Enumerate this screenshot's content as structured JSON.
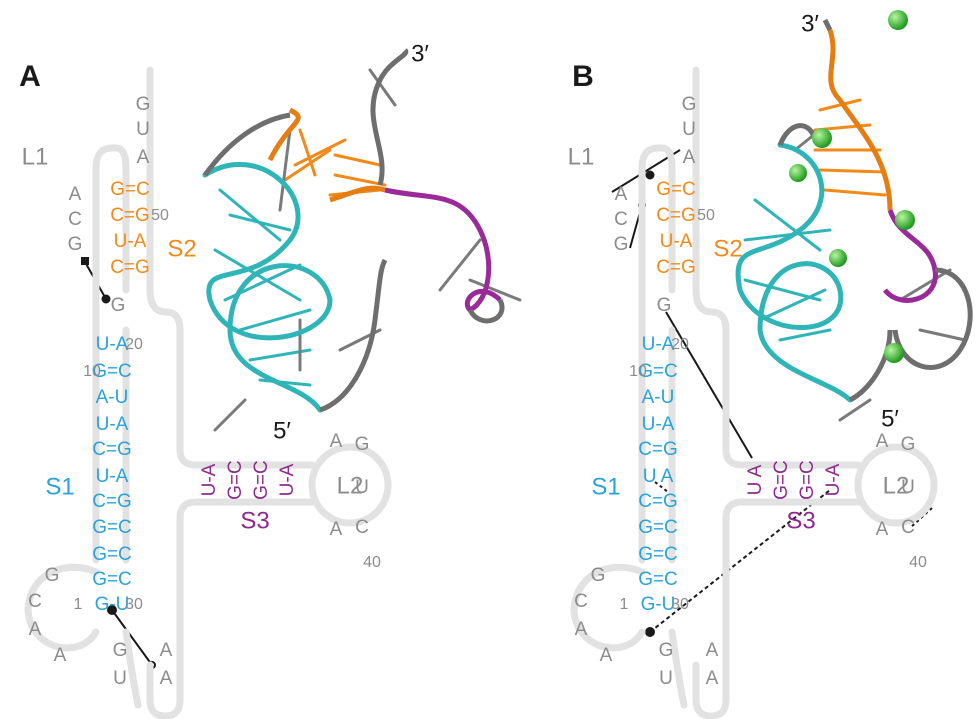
{
  "panels": [
    {
      "label": "A",
      "loop_labels": [
        "L1",
        "L2"
      ],
      "stem_labels": [
        "S1",
        "S2",
        "S3"
      ],
      "ends": [
        "3′",
        "5′"
      ],
      "top_nts": [
        "G",
        "U",
        "A"
      ],
      "l1_nts": [
        "A",
        "C",
        "G",
        "G"
      ],
      "s1_loop_nts": [
        "G",
        "C",
        "A",
        "A"
      ],
      "tail_nts": [
        "G",
        "U",
        "A",
        "A"
      ],
      "l2_nts": [
        "A",
        "G",
        "U",
        "A",
        "C"
      ],
      "s2_pairs": [
        "G=C",
        "C=G",
        "U-A",
        "C=G"
      ],
      "s1_pairs": [
        "U-A",
        "G=C",
        "A-U",
        "U-A",
        "C=G",
        "U-A",
        "C=G",
        "G=C",
        "G=C",
        "G=C",
        "G-U"
      ],
      "s3_pairs": [
        "U-A",
        "G=C",
        "G=C",
        "U-A"
      ],
      "numbers": [
        "50",
        "20",
        "10",
        "1",
        "30",
        "40"
      ]
    },
    {
      "label": "B",
      "loop_labels": [
        "L1",
        "L2"
      ],
      "stem_labels": [
        "S1",
        "S2",
        "S3"
      ],
      "ends": [
        "3′",
        "5′"
      ],
      "top_nts": [
        "G",
        "U",
        "A"
      ],
      "l1_nts": [
        "A",
        "C",
        "G",
        "G"
      ],
      "s1_loop_nts": [
        "G",
        "C",
        "A",
        "A"
      ],
      "tail_nts": [
        "G",
        "U",
        "A",
        "A"
      ],
      "l2_nts": [
        "A",
        "G",
        "U",
        "A",
        "C"
      ],
      "s2_pairs": [
        "G=C",
        "C=G",
        "U-A",
        "C=G"
      ],
      "s1_pairs": [
        "U-A",
        "G=C",
        "A-U",
        "U-A",
        "C=G",
        "U A",
        "C=G",
        "G=C",
        "G=C",
        "G=C",
        "G-U"
      ],
      "s3_pairs": [
        "U A",
        "G=C",
        "G=C",
        "U-A"
      ],
      "numbers": [
        "50",
        "20",
        "10",
        "1",
        "30",
        "40"
      ]
    }
  ]
}
